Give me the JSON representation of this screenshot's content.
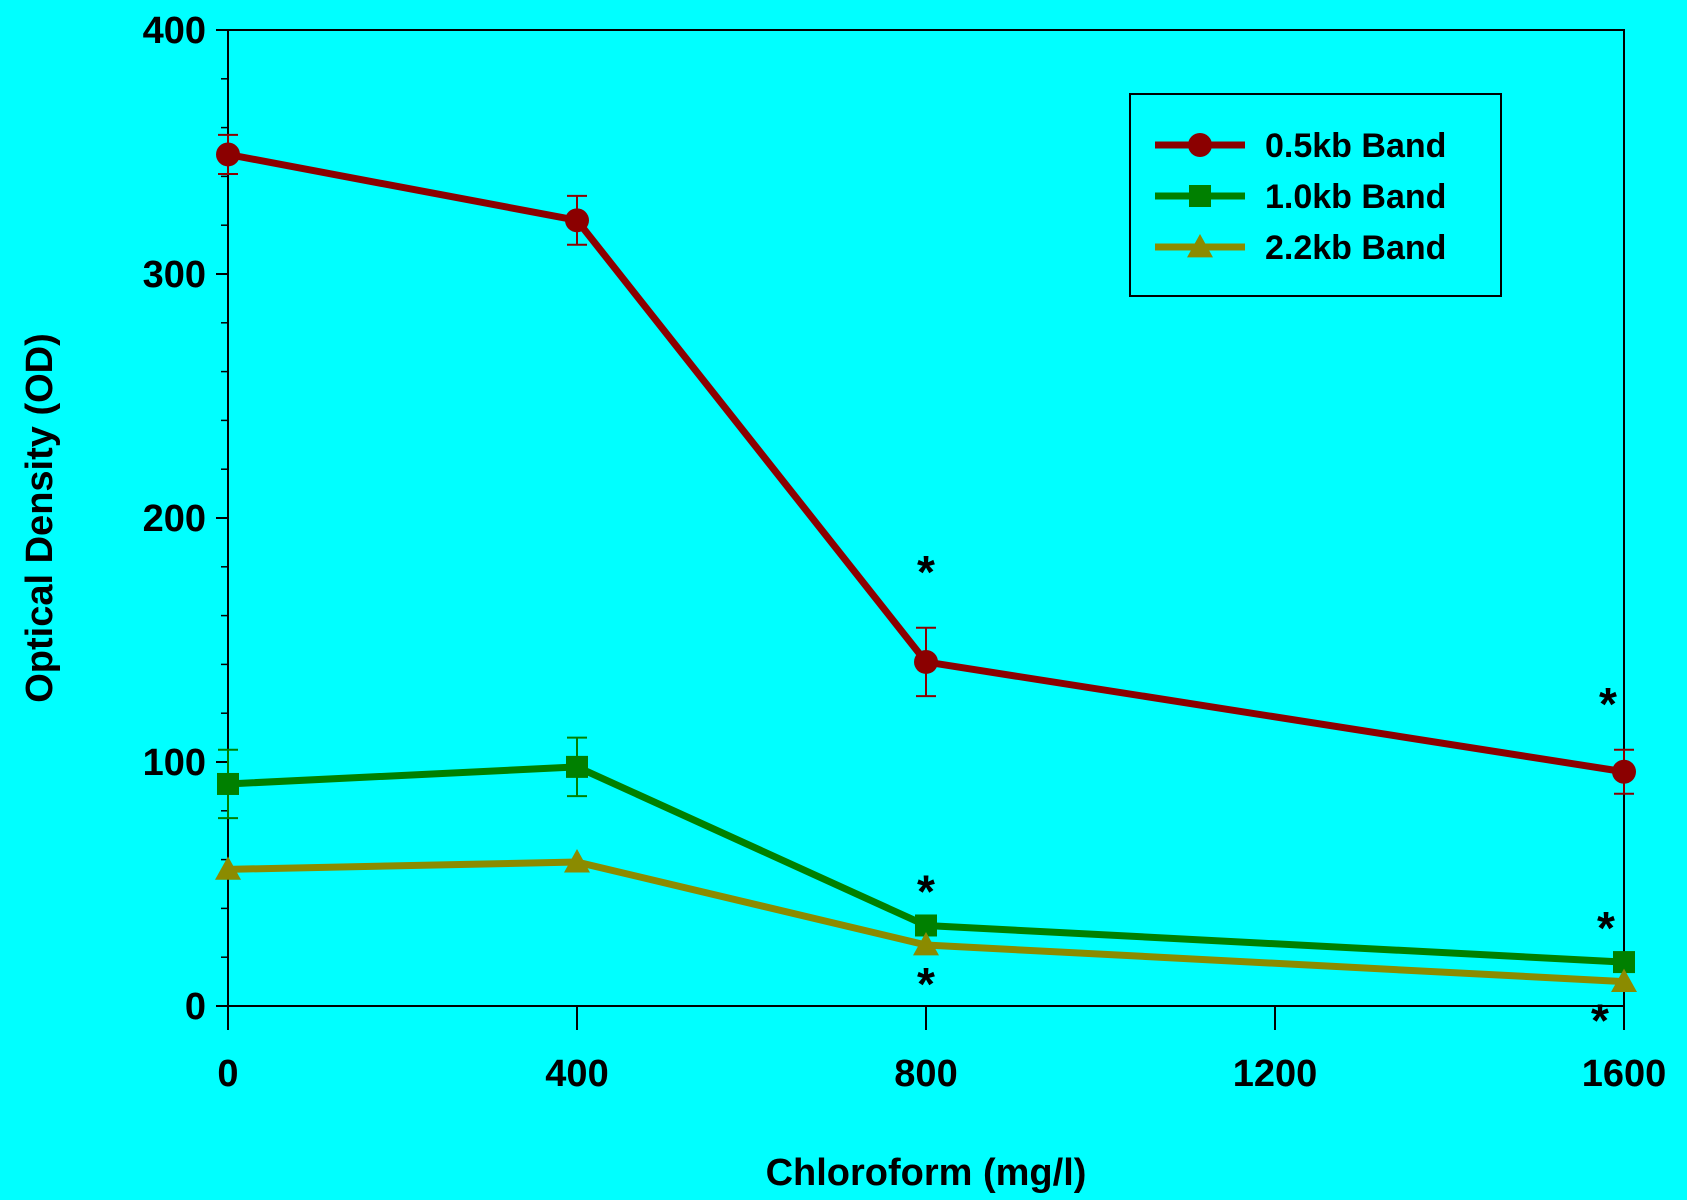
{
  "chart_data": {
    "type": "line",
    "xlabel": "Chloroform (mg/l)",
    "ylabel": "Optical Density (OD)",
    "xlim": [
      0,
      1600
    ],
    "ylim": [
      0,
      400
    ],
    "x_ticks": [
      0,
      400,
      800,
      1200,
      1600
    ],
    "y_ticks": [
      0,
      100,
      200,
      300,
      400
    ],
    "grid": false,
    "legend_position": "top-right",
    "x": [
      0,
      400,
      800,
      1600
    ],
    "series": [
      {
        "name": "0.5kb Band",
        "marker": "circle",
        "color": "#8B0000",
        "values": [
          349,
          322,
          141,
          96
        ],
        "errors": [
          8,
          10,
          14,
          9
        ],
        "significance": [
          "",
          "",
          "*",
          "*"
        ]
      },
      {
        "name": "1.0kb Band",
        "marker": "square",
        "color": "#008000",
        "values": [
          91,
          98,
          33,
          18
        ],
        "errors": [
          14,
          12,
          0,
          0
        ],
        "significance": [
          "",
          "",
          "*",
          "*"
        ]
      },
      {
        "name": "2.2kb Band",
        "marker": "triangle",
        "color": "#8B8B00",
        "values": [
          56,
          59,
          25,
          10
        ],
        "errors": [
          0,
          0,
          0,
          0
        ],
        "significance": [
          "",
          "",
          "*",
          "*"
        ]
      }
    ]
  }
}
